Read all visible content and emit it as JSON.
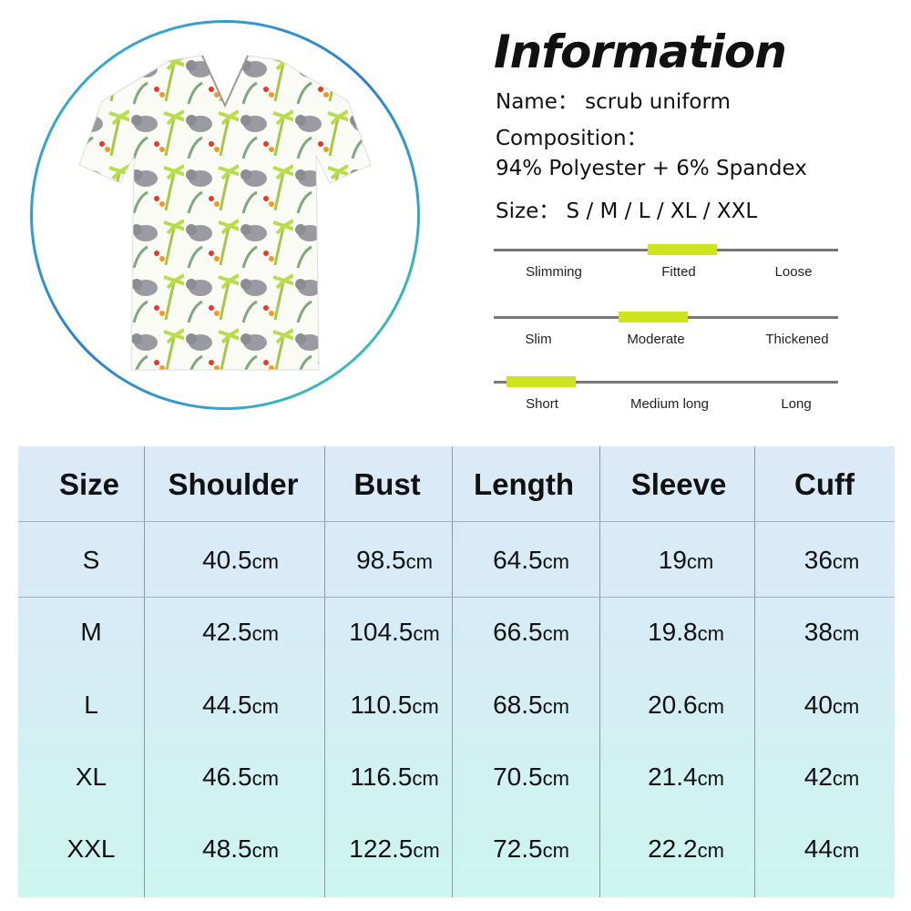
{
  "product_image": {
    "alt": "scrub uniform top with elephant and palm print"
  },
  "info": {
    "title": "Information",
    "name_label": "Name：",
    "name_value": "scrub uniform",
    "composition_label": "Composition：",
    "composition_value": "94% Polyester + 6% Spandex",
    "size_label": "Size：",
    "size_value": "S / M / L / XL / XXL"
  },
  "scales": [
    {
      "labels": [
        "Slimming",
        "Fitted",
        "Loose"
      ],
      "selected": "Fitted"
    },
    {
      "labels": [
        "Slim",
        "Moderate",
        "Thickened"
      ],
      "selected": "Moderate"
    },
    {
      "labels": [
        "Short",
        "Medium long",
        "Long"
      ],
      "selected": "Short"
    }
  ],
  "colors": {
    "highlight": "#cfe31f",
    "circle_border": "#2b9fd0"
  },
  "size_table": {
    "headers": [
      "Size",
      "Shoulder",
      "Bust",
      "Length",
      "Sleeve",
      "Cuff"
    ],
    "unit": "cm",
    "rows": [
      [
        "S",
        "40.5",
        "98.5",
        "64.5",
        "19",
        "36"
      ],
      [
        "M",
        "42.5",
        "104.5",
        "66.5",
        "19.8",
        "38"
      ],
      [
        "L",
        "44.5",
        "110.5",
        "68.5",
        "20.6",
        "40"
      ],
      [
        "XL",
        "46.5",
        "116.5",
        "70.5",
        "21.4",
        "42"
      ],
      [
        "XXL",
        "48.5",
        "122.5",
        "72.5",
        "22.2",
        "44"
      ]
    ]
  }
}
